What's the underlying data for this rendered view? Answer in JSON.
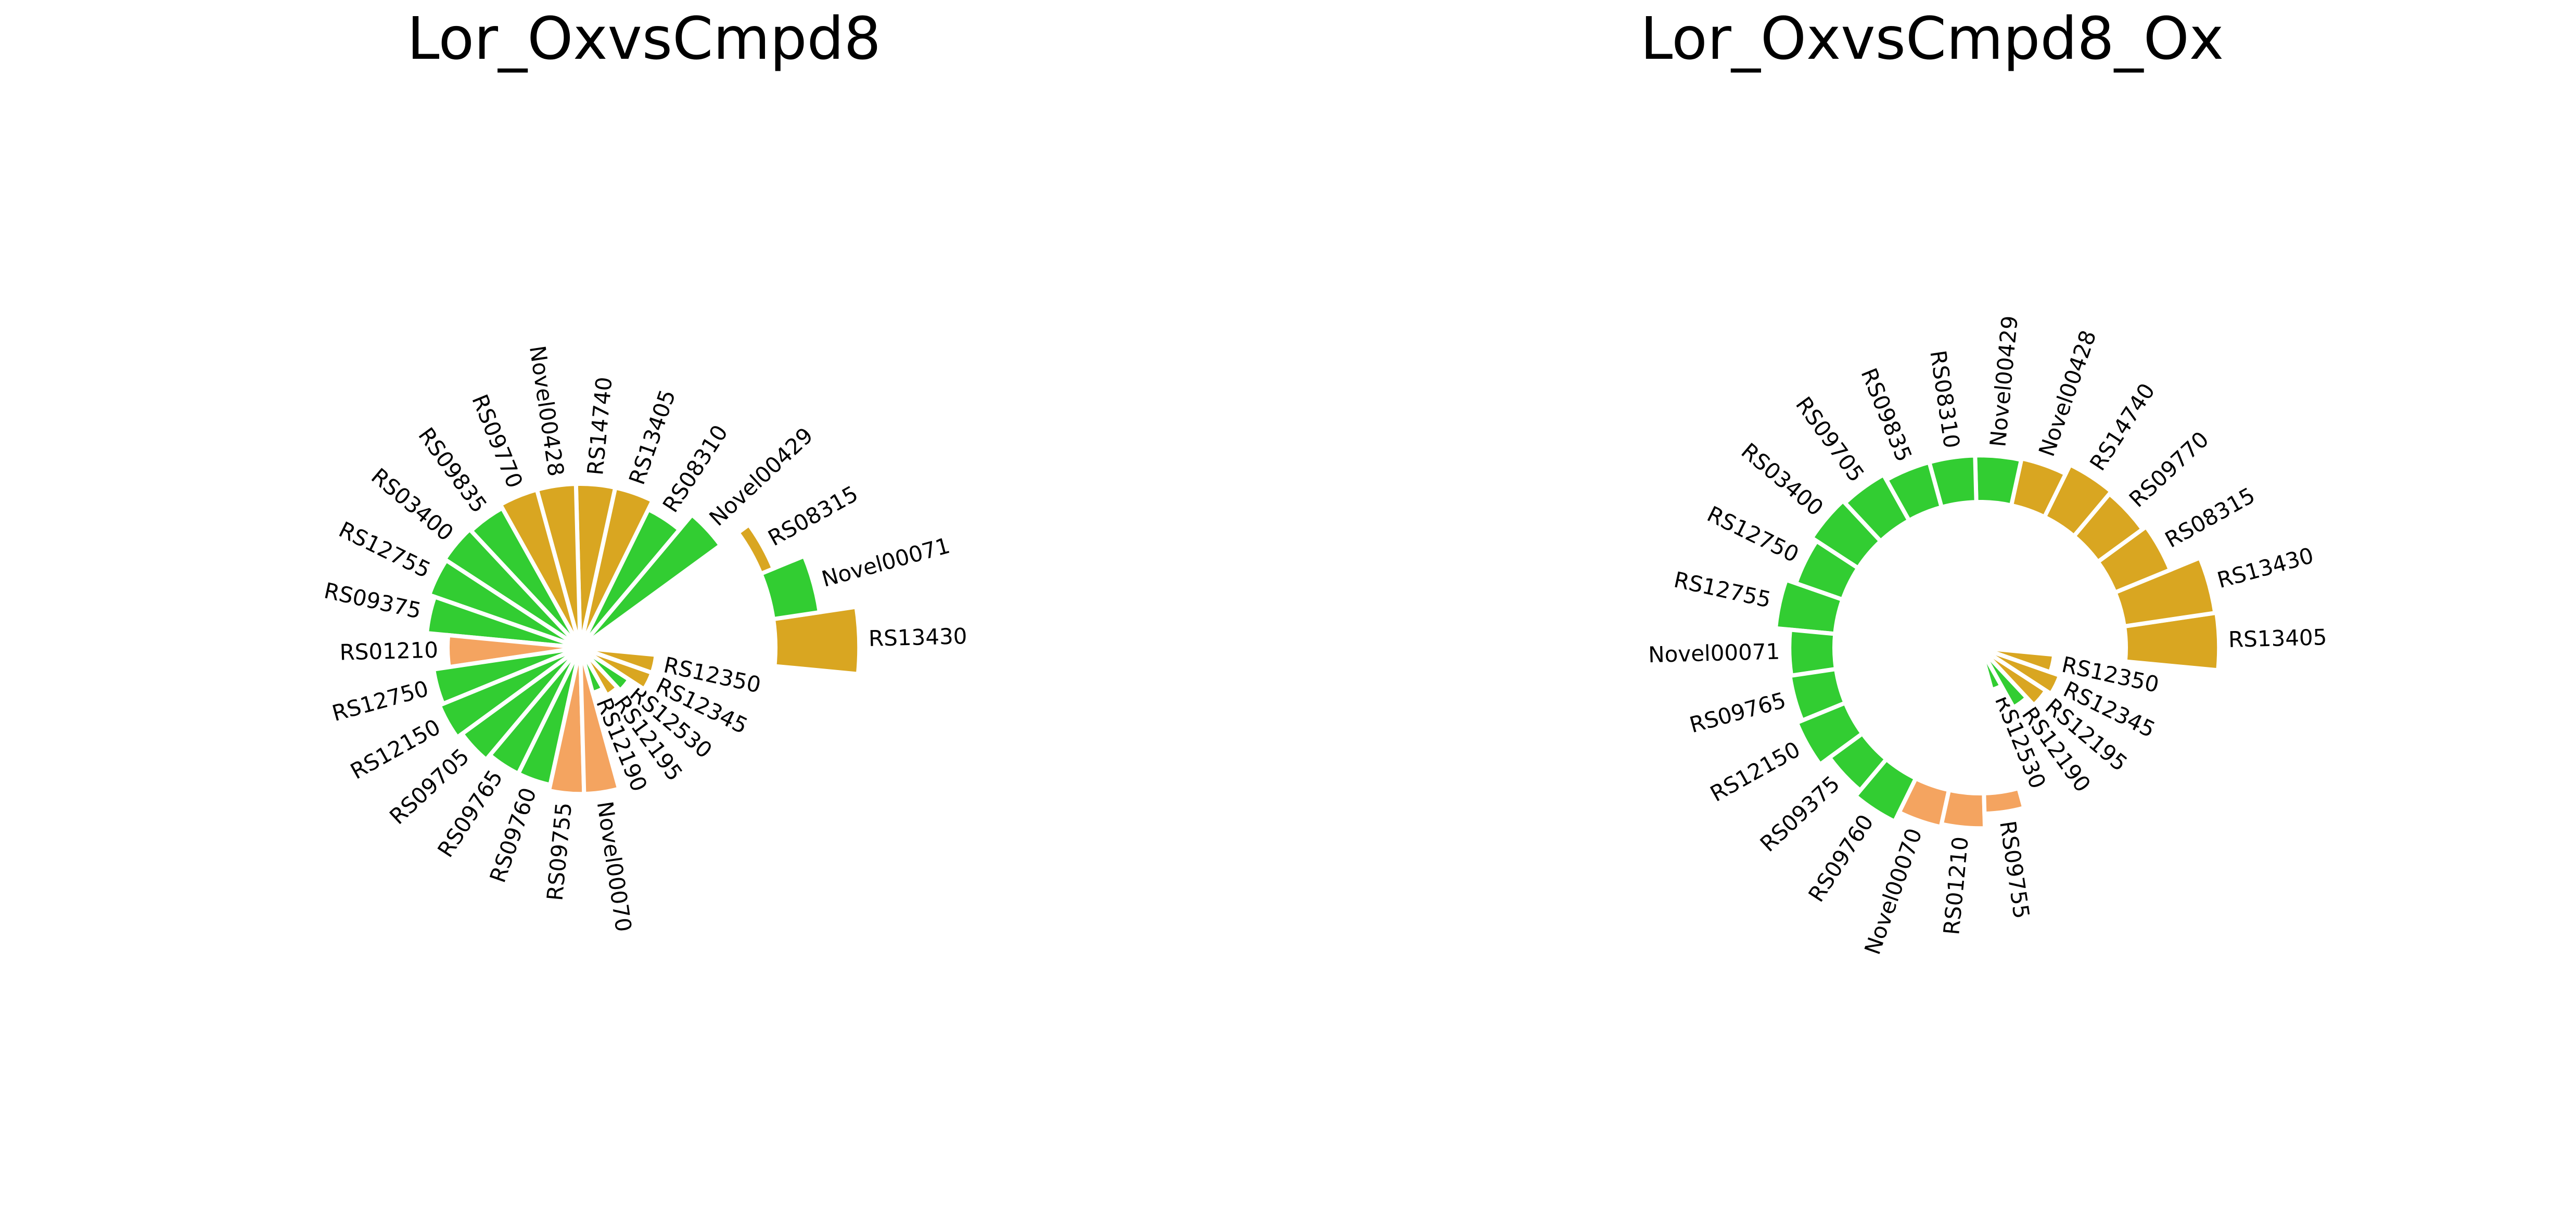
{
  "colors": {
    "up": "#d9a621",
    "down": "#32cd32",
    "novel": "#f4a460",
    "separator": "#ffffff"
  },
  "chart_data": [
    {
      "type": "bar",
      "subtype": "radial-bar",
      "title": "Lor_OxvsCmpd8",
      "categories": [
        "RS13430",
        "Novel00071",
        "RS08315",
        "Novel00429",
        "RS08310",
        "RS13405",
        "RS14740",
        "Novel00428",
        "RS09770",
        "RS09835",
        "RS03400",
        "RS12755",
        "RS09375",
        "RS01210",
        "RS12750",
        "RS12150",
        "RS09705",
        "RS09765",
        "RS09760",
        "RS09755",
        "Novel00070",
        "RS12190",
        "RS12195",
        "RS12530",
        "RS12345",
        "RS12350"
      ],
      "values": [
        14.3,
        12.4,
        10.7,
        8.9,
        7.9,
        8.4,
        8.4,
        8.4,
        8.4,
        8.2,
        8.3,
        8.2,
        7.9,
        6.8,
        7.6,
        7.8,
        7.5,
        7.2,
        7.2,
        7.5,
        7.5,
        2.4,
        2.8,
        3.0,
        3.9,
        3.9
      ],
      "groups": [
        "up",
        "down",
        "up",
        "down",
        "down",
        "up",
        "up",
        "up",
        "up",
        "down",
        "down",
        "down",
        "down",
        "novel",
        "down",
        "down",
        "down",
        "down",
        "down",
        "novel",
        "novel",
        "down",
        "up",
        "down",
        "up",
        "up"
      ],
      "ylim": [
        0,
        16
      ],
      "grid": false,
      "inner_radius": 10
    },
    {
      "type": "bar",
      "subtype": "radial-bar",
      "title": "Lor_OxvsCmpd8_Ox",
      "categories": [
        "RS13405",
        "RS13430",
        "RS08315",
        "RS09770",
        "RS14740",
        "Novel00428",
        "Novel00429",
        "RS08310",
        "RS09835",
        "RS09705",
        "RS03400",
        "RS12750",
        "RS12755",
        "Novel00071",
        "RS09765",
        "RS12150",
        "RS09375",
        "RS09760",
        "Novel00070",
        "RS01210",
        "RS09755",
        "RS12530",
        "RS12190",
        "RS12195",
        "RS12345",
        "RS12350"
      ],
      "values": [
        16.4,
        16.3,
        14.1,
        13.8,
        14.0,
        13.3,
        13.2,
        13.2,
        13.2,
        13.6,
        13.8,
        13.4,
        14.1,
        13.1,
        13.2,
        13.6,
        12.8,
        13.3,
        12.6,
        12.4,
        11.4,
        3.0,
        4.7,
        5.4,
        5.8,
        5.1
      ],
      "groups": [
        "up",
        "up",
        "up",
        "up",
        "up",
        "up",
        "down",
        "down",
        "down",
        "down",
        "down",
        "down",
        "down",
        "down",
        "down",
        "down",
        "down",
        "down",
        "novel",
        "novel",
        "novel",
        "down",
        "down",
        "up",
        "up",
        "up"
      ],
      "ylim": [
        0,
        22
      ],
      "grid": false,
      "inner_radius": 10
    }
  ]
}
